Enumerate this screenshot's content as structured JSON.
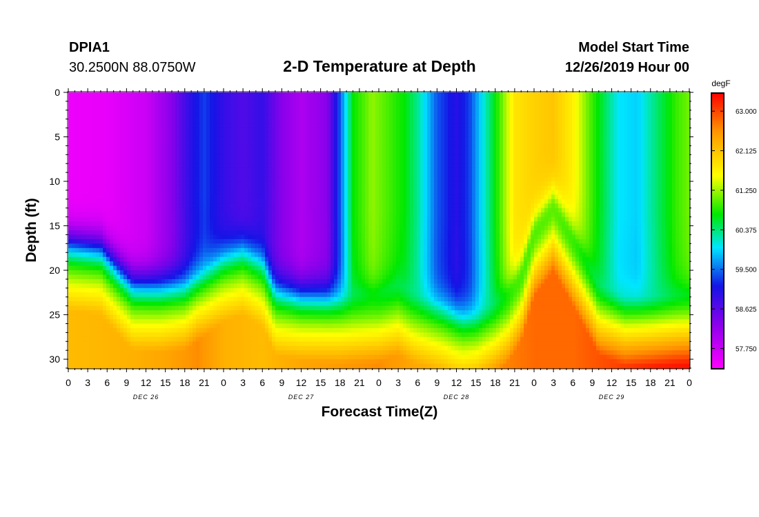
{
  "header": {
    "station_id": "DPIA1",
    "location": "30.2500N 88.0750W",
    "title": "2-D Temperature at Depth",
    "model_label": "Model Start Time",
    "model_time": "12/26/2019 Hour 00"
  },
  "chart_data": {
    "type": "heatmap",
    "title": "2-D Temperature at Depth",
    "xlabel": "Forecast Time(Z)",
    "ylabel": "Depth (ft)",
    "x_tick_labels": [
      "0",
      "3",
      "6",
      "9",
      "12",
      "15",
      "18",
      "21",
      "0",
      "3",
      "6",
      "9",
      "12",
      "15",
      "18",
      "21",
      "0",
      "3",
      "6",
      "9",
      "12",
      "15",
      "18",
      "21",
      "0",
      "3",
      "6",
      "9",
      "12",
      "15",
      "18",
      "21",
      "0"
    ],
    "day_labels": [
      "DEC 26",
      "DEC 27",
      "DEC 28",
      "DEC 29"
    ],
    "xlim_hours": [
      0,
      96
    ],
    "y_ticks": [
      0,
      5,
      10,
      15,
      20,
      25,
      30
    ],
    "ylim": [
      31,
      0
    ],
    "colorbar": {
      "unit": "degF",
      "ticks": [
        "63.000",
        "62.125",
        "61.250",
        "60.375",
        "59.500",
        "58.625",
        "57.750"
      ],
      "min": 57.3,
      "max": 63.4
    }
  }
}
